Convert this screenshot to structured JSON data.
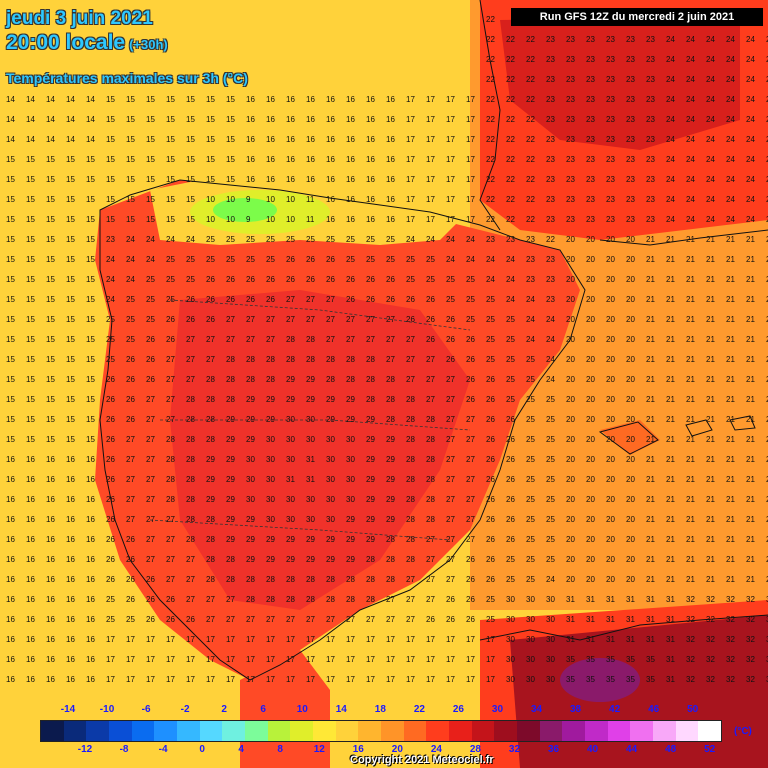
{
  "header": {
    "date": "jeudi 3 juin 2021",
    "time": "20:00 locale",
    "offset": "(+30h)",
    "subtitle": "Températures maximales sur 3h (°C)"
  },
  "run_label": "Run GFS 12Z du mercredi 2 juin 2021",
  "legend": {
    "top_labels": [
      "-14",
      "-10",
      "-6",
      "-2",
      "2",
      "6",
      "10",
      "14",
      "18",
      "22",
      "26",
      "30",
      "34",
      "38",
      "42",
      "46",
      "50"
    ],
    "bottom_labels": [
      "-12",
      "-8",
      "-4",
      "0",
      "4",
      "8",
      "12",
      "16",
      "20",
      "24",
      "28",
      "32",
      "36",
      "40",
      "44",
      "48",
      "52"
    ],
    "unit": "(°C)",
    "colors": [
      "#0b1a4d",
      "#0a2a7a",
      "#0b3aa8",
      "#0a4fd6",
      "#0a6cf0",
      "#1e90ff",
      "#35b8ff",
      "#55d8ff",
      "#6ff0e0",
      "#7cfc9a",
      "#b8f23a",
      "#e0ee2a",
      "#ffe836",
      "#ffd23a",
      "#ffb52e",
      "#ff9428",
      "#ff6a22",
      "#ff3d1d",
      "#e8201a",
      "#c4141a",
      "#9e0e1e",
      "#7d0a2a",
      "#8a1a6a",
      "#a01a9e",
      "#c02ac8",
      "#e040e8",
      "#f070f0",
      "#f8a8f8",
      "#ffd8ff",
      "#ffffff"
    ]
  },
  "copyright": "Copyright 2021 Meteociel.fr",
  "map": {
    "zones": [
      {
        "name": "ocean",
        "color": "#ffd23a"
      },
      {
        "name": "warm-sea",
        "color": "#ff9a2e"
      },
      {
        "name": "land-hot",
        "color": "#ff4a26"
      },
      {
        "name": "land-hotter",
        "color": "#f0322a"
      },
      {
        "name": "north-coast-cool",
        "color": "#ffe836"
      },
      {
        "name": "mountains-cold",
        "color": "#a8f03a"
      },
      {
        "name": "africa-hot",
        "color": "#a8141e"
      },
      {
        "name": "africa-hottest",
        "color": "#8a1a6a"
      }
    ]
  }
}
